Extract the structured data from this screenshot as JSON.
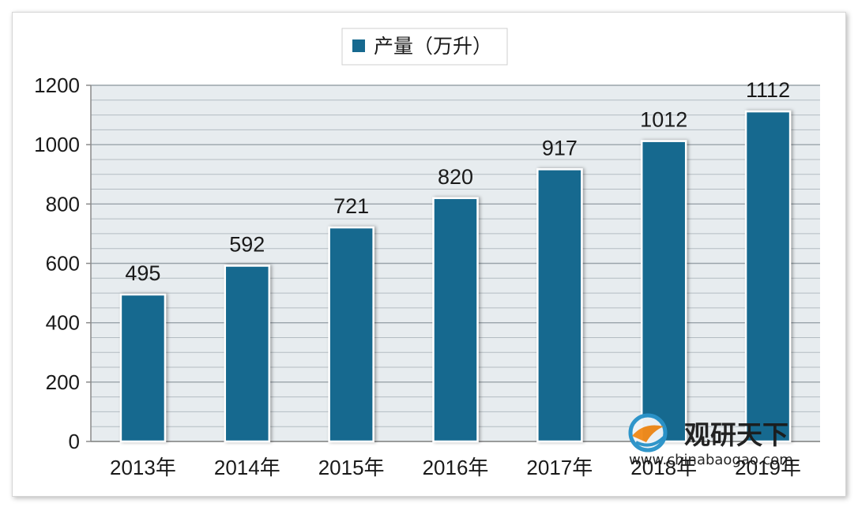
{
  "chart_data": {
    "type": "bar",
    "categories": [
      "2013年",
      "2014年",
      "2015年",
      "2016年",
      "2017年",
      "2018年",
      "2019年"
    ],
    "series": [
      {
        "name": "产量（万升）",
        "values": [
          495,
          592,
          721,
          820,
          917,
          1012,
          1112
        ]
      }
    ],
    "data_labels": [
      "495",
      "592",
      "721",
      "820",
      "917",
      "1012",
      "1112"
    ],
    "y_ticks": [
      0,
      200,
      400,
      600,
      800,
      1000,
      1200
    ],
    "ylim": [
      0,
      1200
    ],
    "grid": true,
    "legend_position": "top-center",
    "bar_color": "#17698f",
    "plot_background": "#e7ecef"
  },
  "legend": {
    "label": "产量（万升）"
  },
  "watermark": {
    "name": "观研天下",
    "url": "www.chinabaogao.com"
  }
}
